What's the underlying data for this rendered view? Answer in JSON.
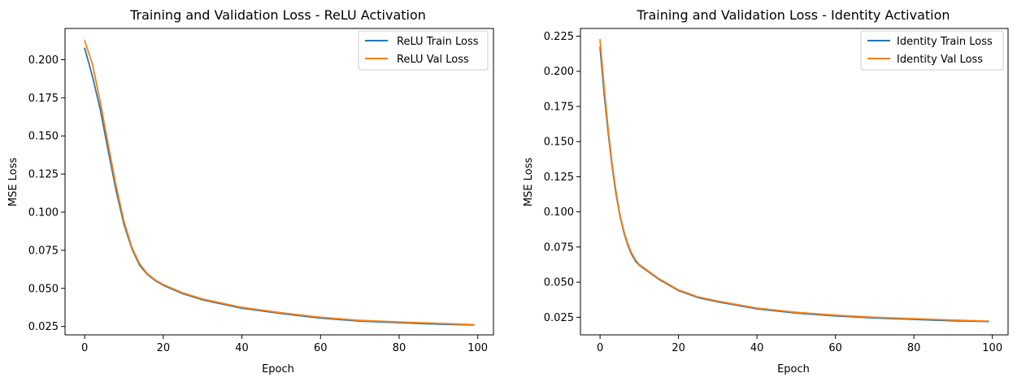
{
  "colors": {
    "train": "#1f77b4",
    "val": "#ff7f0e"
  },
  "chart_data": [
    {
      "type": "line",
      "title": "Training and Validation Loss - ReLU Activation",
      "xlabel": "Epoch",
      "ylabel": "MSE Loss",
      "xlim": [
        -5,
        104
      ],
      "ylim": [
        0.0195,
        0.2205
      ],
      "xticks": [
        0,
        20,
        40,
        60,
        80,
        100
      ],
      "xtick_labels": [
        "0",
        "20",
        "40",
        "60",
        "80",
        "100"
      ],
      "yticks": [
        0.025,
        0.05,
        0.075,
        0.1,
        0.125,
        0.15,
        0.175,
        0.2
      ],
      "ytick_labels": [
        "0.025",
        "0.050",
        "0.075",
        "0.100",
        "0.125",
        "0.150",
        "0.175",
        "0.200"
      ],
      "legend_position": "top-right",
      "series": [
        {
          "name": "ReLU Train Loss",
          "color_key": "train",
          "x": [
            0,
            2,
            4,
            6,
            8,
            10,
            12,
            14,
            16,
            18,
            20,
            25,
            30,
            40,
            50,
            60,
            70,
            80,
            90,
            99
          ],
          "y": [
            0.2075,
            0.189,
            0.167,
            0.14,
            0.114,
            0.092,
            0.076,
            0.065,
            0.059,
            0.055,
            0.052,
            0.0465,
            0.0425,
            0.037,
            0.0335,
            0.0305,
            0.0285,
            0.0275,
            0.0265,
            0.026
          ]
        },
        {
          "name": "ReLU Val Loss",
          "color_key": "val",
          "x": [
            0,
            2,
            4,
            6,
            8,
            10,
            12,
            14,
            16,
            18,
            20,
            25,
            30,
            40,
            50,
            60,
            70,
            80,
            90,
            99
          ],
          "y": [
            0.2125,
            0.197,
            0.172,
            0.144,
            0.117,
            0.094,
            0.077,
            0.066,
            0.0595,
            0.0555,
            0.0525,
            0.047,
            0.043,
            0.0375,
            0.034,
            0.031,
            0.029,
            0.028,
            0.027,
            0.0262
          ]
        }
      ]
    },
    {
      "type": "line",
      "title": "Training and Validation Loss - Identity Activation",
      "xlabel": "Epoch",
      "ylabel": "MSE Loss",
      "xlim": [
        -5,
        104
      ],
      "ylim": [
        0.0125,
        0.2305
      ],
      "xticks": [
        0,
        20,
        40,
        60,
        80,
        100
      ],
      "xtick_labels": [
        "0",
        "20",
        "40",
        "60",
        "80",
        "100"
      ],
      "yticks": [
        0.025,
        0.05,
        0.075,
        0.1,
        0.125,
        0.15,
        0.175,
        0.2,
        0.225
      ],
      "ytick_labels": [
        "0.025",
        "0.050",
        "0.075",
        "0.100",
        "0.125",
        "0.150",
        "0.175",
        "0.200",
        "0.225"
      ],
      "legend_position": "top-right",
      "series": [
        {
          "name": "Identity Train Loss",
          "color_key": "train",
          "x": [
            0,
            1,
            2,
            3,
            4,
            5,
            6,
            7,
            8,
            9,
            10,
            12,
            15,
            20,
            25,
            30,
            40,
            50,
            60,
            70,
            80,
            90,
            99
          ],
          "y": [
            0.217,
            0.185,
            0.158,
            0.134,
            0.114,
            0.098,
            0.086,
            0.077,
            0.07,
            0.065,
            0.062,
            0.058,
            0.052,
            0.044,
            0.039,
            0.036,
            0.031,
            0.028,
            0.026,
            0.0245,
            0.0235,
            0.0225,
            0.022
          ]
        },
        {
          "name": "Identity Val Loss",
          "color_key": "val",
          "x": [
            0,
            1,
            2,
            3,
            4,
            5,
            6,
            7,
            8,
            9,
            10,
            12,
            15,
            20,
            25,
            30,
            40,
            50,
            60,
            70,
            80,
            90,
            99
          ],
          "y": [
            0.2225,
            0.19,
            0.161,
            0.136,
            0.116,
            0.099,
            0.087,
            0.078,
            0.071,
            0.066,
            0.0625,
            0.0585,
            0.0525,
            0.0445,
            0.0395,
            0.0365,
            0.0315,
            0.0285,
            0.0265,
            0.025,
            0.024,
            0.023,
            0.0223
          ]
        }
      ]
    }
  ]
}
